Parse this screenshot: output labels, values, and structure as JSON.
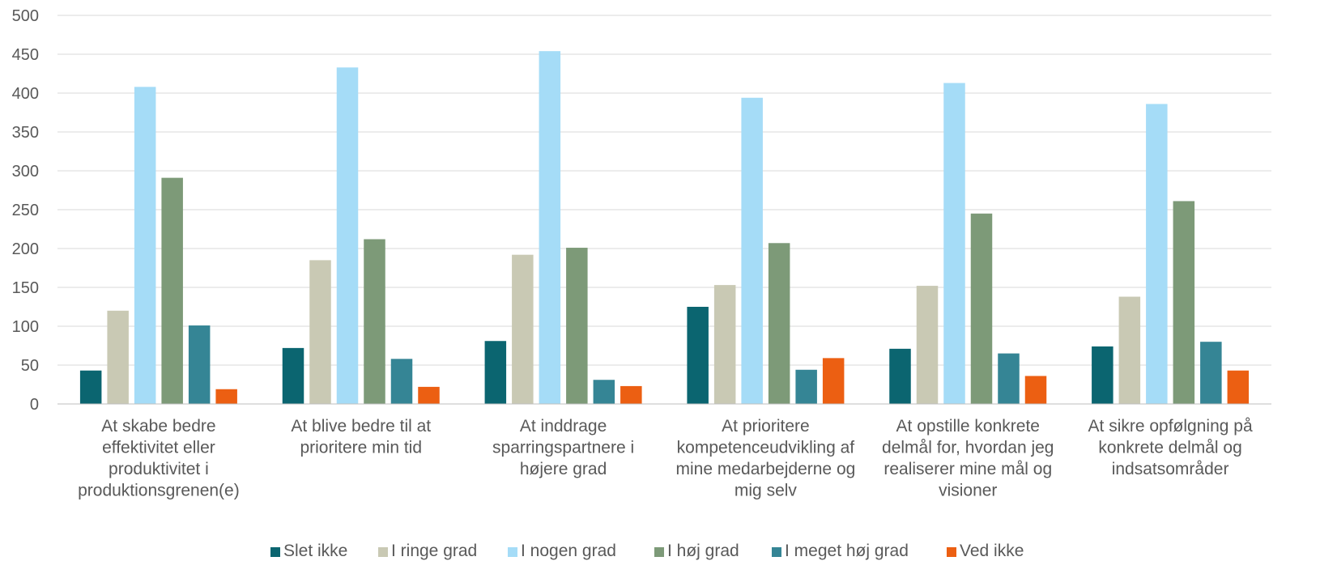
{
  "chart_data": {
    "type": "bar",
    "title": "",
    "xlabel": "",
    "ylabel": "",
    "ylim": [
      0,
      500
    ],
    "yticks": [
      0,
      50,
      100,
      150,
      200,
      250,
      300,
      350,
      400,
      450,
      500
    ],
    "grid": true,
    "legend_position": "bottom",
    "categories": [
      [
        "At skabe bedre",
        "effektivitet eller",
        "produktivitet i",
        "produktionsgrenen(e)"
      ],
      [
        "At blive bedre til at",
        "prioritere min tid"
      ],
      [
        "At inddrage",
        "sparringspartnere i",
        "højere grad"
      ],
      [
        "At prioritere",
        "kompetenceudvikling af",
        "mine medarbejderne og",
        "mig selv"
      ],
      [
        "At opstille konkrete",
        "delmål for, hvordan jeg",
        "realiserer mine mål og",
        "visioner"
      ],
      [
        "At sikre opfølgning på",
        "konkrete delmål og",
        "indsatsområder"
      ]
    ],
    "series": [
      {
        "name": "Slet ikke",
        "color": "#0b6570",
        "values": [
          43,
          72,
          81,
          125,
          71,
          74
        ]
      },
      {
        "name": "I ringe grad",
        "color": "#c9c9b4",
        "values": [
          120,
          185,
          192,
          153,
          152,
          138
        ]
      },
      {
        "name": "I nogen grad",
        "color": "#a5dcf7",
        "values": [
          408,
          433,
          454,
          394,
          413,
          386
        ]
      },
      {
        "name": "I høj grad",
        "color": "#7d9a78",
        "values": [
          291,
          212,
          201,
          207,
          245,
          261
        ]
      },
      {
        "name": "I meget høj grad",
        "color": "#358595",
        "values": [
          101,
          58,
          31,
          44,
          65,
          80
        ]
      },
      {
        "name": "Ved ikke",
        "color": "#ec5f12",
        "values": [
          19,
          22,
          23,
          59,
          36,
          43
        ]
      }
    ]
  }
}
